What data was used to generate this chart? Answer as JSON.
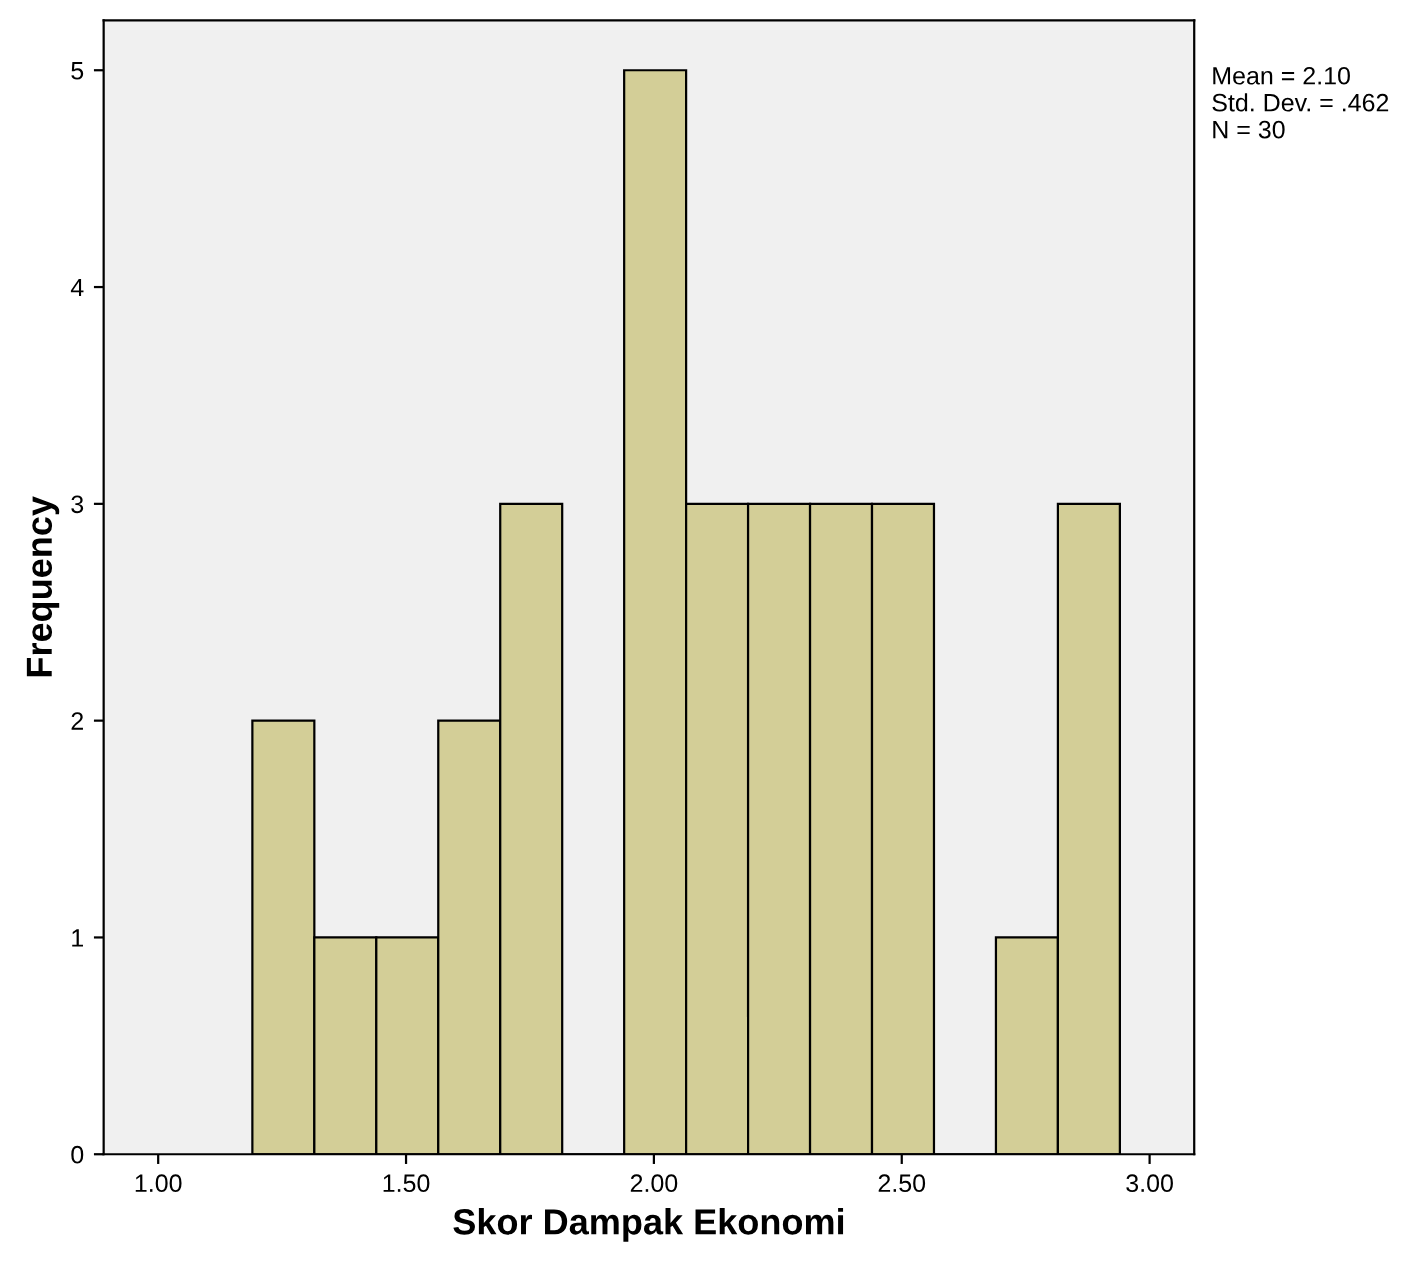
{
  "chart_data": {
    "type": "histogram",
    "xlabel": "Skor Dampak Ekonomi",
    "ylabel": "Frequency",
    "bins": [
      1.19,
      1.315,
      1.44,
      1.565,
      1.69,
      1.815,
      1.94,
      2.065,
      2.19,
      2.315,
      2.44,
      2.565,
      2.69,
      2.815,
      2.94
    ],
    "values": [
      2,
      1,
      1,
      2,
      3,
      0,
      5,
      3,
      3,
      3,
      3,
      0,
      1,
      3
    ],
    "color": "#d3ce97",
    "xlim": [
      0.89,
      3.09
    ],
    "xticks": [
      {
        "value": 1.0,
        "label": "1.00"
      },
      {
        "value": 1.5,
        "label": "1.50"
      },
      {
        "value": 2.0,
        "label": "2.00"
      },
      {
        "value": 2.5,
        "label": "2.50"
      },
      {
        "value": 3.0,
        "label": "3.00"
      }
    ],
    "ylim": [
      0,
      5.23
    ],
    "yticks": [
      0,
      1,
      2,
      3,
      4,
      5
    ],
    "grid": false,
    "annotations": [
      "Mean = 2.10\nStd. Dev. = .462\nN = 30"
    ]
  }
}
